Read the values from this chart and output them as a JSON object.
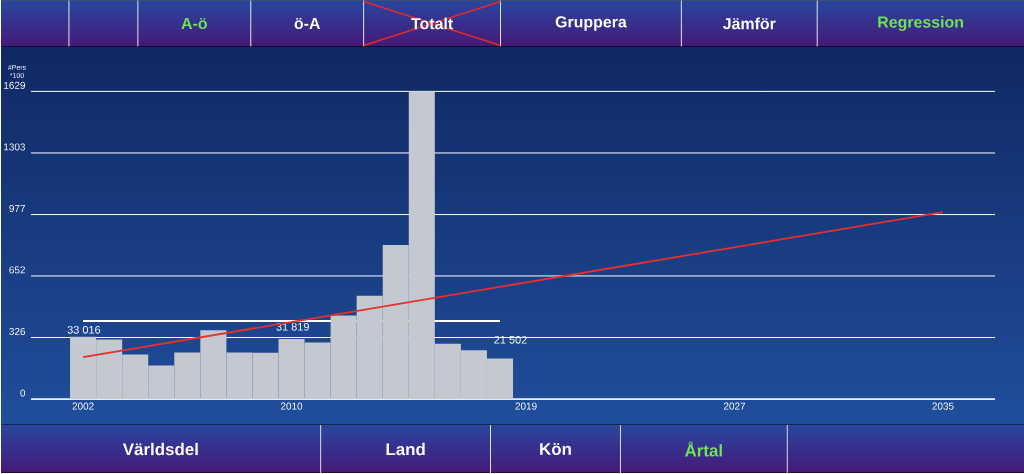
{
  "chart_data": {
    "type": "bar",
    "ylabel": "#Pers *100",
    "x": [
      2002,
      2003,
      2004,
      2005,
      2006,
      2007,
      2008,
      2009,
      2010,
      2011,
      2012,
      2013,
      2014,
      2015,
      2016,
      2017,
      2018
    ],
    "series": [
      {
        "type": "bar",
        "color": "#c4c8d0",
        "values": [
          330.16,
          316,
          236,
          178,
          247,
          365,
          247,
          245,
          318.19,
          300,
          443,
          547,
          816,
          1629,
          293,
          259,
          215.02
        ]
      },
      {
        "type": "line",
        "color": "#e8302a",
        "x": [
          2002,
          2035
        ],
        "values": [
          222,
          990
        ]
      }
    ],
    "ref_lines": [
      {
        "axis": "y",
        "value": 413,
        "color": "#ffffff"
      }
    ],
    "xlim": [
      2000,
      2037
    ],
    "ylim": [
      0,
      1629
    ],
    "xticks": [
      2002,
      2010,
      2019,
      2027,
      2035
    ],
    "yticks": [
      0,
      326,
      652,
      977,
      1303,
      1629
    ],
    "grid": "y",
    "annotations": [
      "A-ö",
      "ö-A",
      "Totalt",
      "Gruppera",
      "Jämför",
      "Regression",
      "Världsdel",
      "Land",
      "Kön",
      "Årtal",
      "33 016",
      "31 819",
      "21 502"
    ]
  }
}
